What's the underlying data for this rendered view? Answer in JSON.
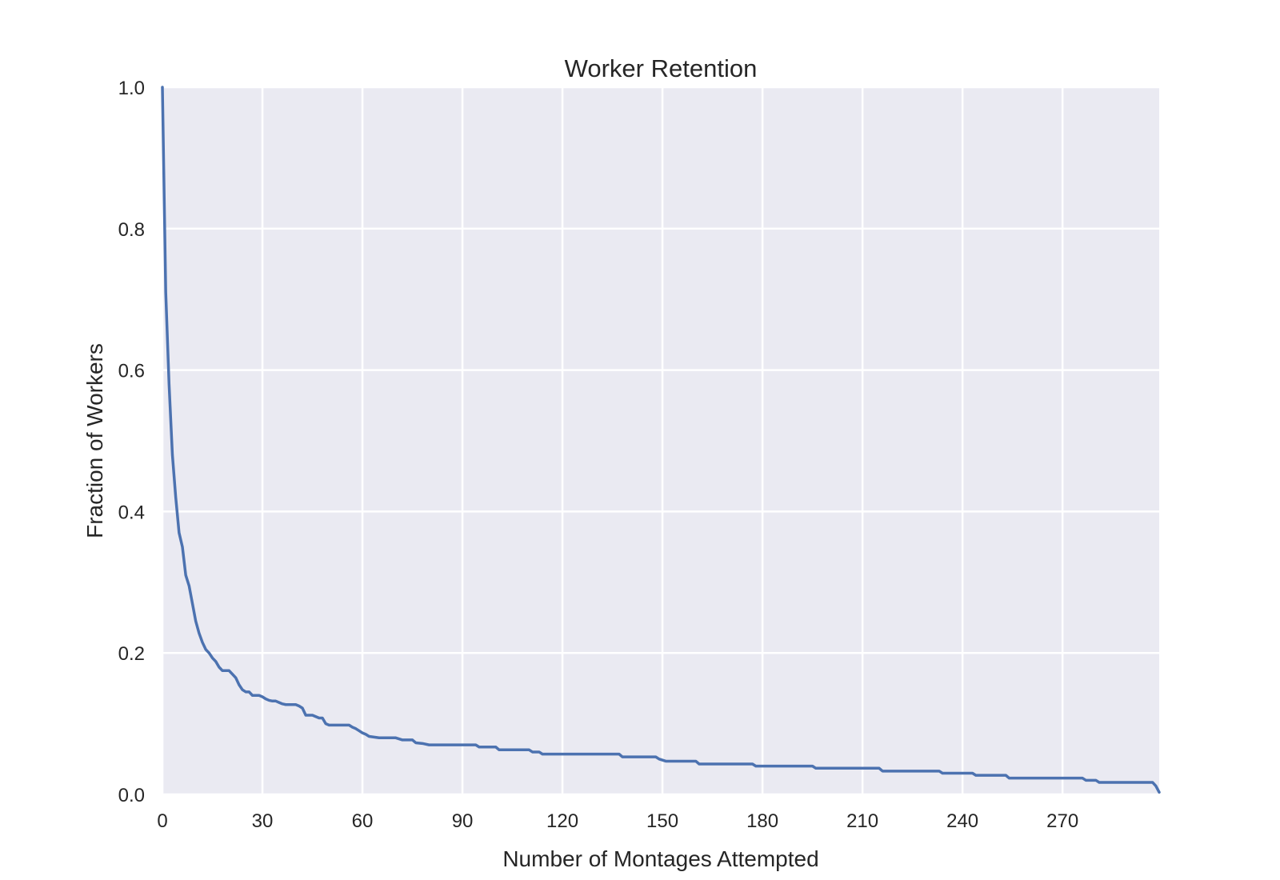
{
  "chart_data": {
    "type": "line",
    "title": "Worker Retention",
    "xlabel": "Number of Montages Attempted",
    "ylabel": "Fraction of Workers",
    "xlim": [
      0,
      299
    ],
    "ylim": [
      0,
      1.0
    ],
    "xticks": [
      0,
      30,
      60,
      90,
      120,
      150,
      180,
      210,
      240,
      270
    ],
    "yticks": [
      0.0,
      0.2,
      0.4,
      0.6,
      0.8,
      1.0
    ],
    "xtick_labels": [
      "0",
      "30",
      "60",
      "90",
      "120",
      "150",
      "180",
      "210",
      "240",
      "270"
    ],
    "ytick_labels": [
      "0.0",
      "0.2",
      "0.4",
      "0.6",
      "0.8",
      "1.0"
    ],
    "grid": true,
    "colors": {
      "background": "#EAEAF2",
      "grid": "#FFFFFF",
      "line": "#4C72B0"
    },
    "series": [
      {
        "x": [
          0,
          1,
          2,
          3,
          4,
          5,
          6,
          7,
          8,
          9,
          10,
          11,
          12,
          13,
          14,
          15,
          16,
          17,
          18,
          19,
          20,
          21,
          22,
          23,
          24,
          25,
          26,
          27,
          28,
          29,
          30,
          31,
          32,
          33,
          34,
          35,
          36,
          37,
          38,
          39,
          40,
          41,
          42,
          43,
          44,
          45,
          46,
          47,
          48,
          49,
          50,
          52,
          55,
          56,
          57,
          58,
          59,
          60,
          61,
          62,
          65,
          70,
          72,
          75,
          76,
          78,
          80,
          85,
          90,
          94,
          95,
          100,
          101,
          105,
          110,
          111,
          113,
          114,
          120,
          130,
          137,
          138,
          145,
          148,
          149,
          151,
          152,
          160,
          161,
          170,
          177,
          178,
          190,
          195,
          196,
          210,
          215,
          216,
          230,
          233,
          234,
          240,
          243,
          244,
          250,
          253,
          254,
          270,
          276,
          277,
          280,
          281,
          290,
          297,
          298,
          299
        ],
        "y": [
          1.0,
          0.71,
          0.58,
          0.48,
          0.42,
          0.37,
          0.35,
          0.31,
          0.295,
          0.27,
          0.245,
          0.228,
          0.215,
          0.205,
          0.2,
          0.193,
          0.188,
          0.18,
          0.175,
          0.175,
          0.175,
          0.17,
          0.165,
          0.155,
          0.148,
          0.145,
          0.145,
          0.14,
          0.14,
          0.14,
          0.138,
          0.135,
          0.133,
          0.132,
          0.132,
          0.13,
          0.128,
          0.127,
          0.127,
          0.127,
          0.127,
          0.125,
          0.122,
          0.112,
          0.112,
          0.112,
          0.11,
          0.108,
          0.108,
          0.1,
          0.098,
          0.098,
          0.098,
          0.098,
          0.095,
          0.093,
          0.09,
          0.087,
          0.085,
          0.082,
          0.08,
          0.08,
          0.077,
          0.077,
          0.073,
          0.072,
          0.07,
          0.07,
          0.07,
          0.07,
          0.067,
          0.067,
          0.063,
          0.063,
          0.063,
          0.06,
          0.06,
          0.057,
          0.057,
          0.057,
          0.057,
          0.053,
          0.053,
          0.053,
          0.05,
          0.047,
          0.047,
          0.047,
          0.043,
          0.043,
          0.043,
          0.04,
          0.04,
          0.04,
          0.037,
          0.037,
          0.037,
          0.033,
          0.033,
          0.033,
          0.03,
          0.03,
          0.03,
          0.027,
          0.027,
          0.027,
          0.023,
          0.023,
          0.023,
          0.02,
          0.02,
          0.017,
          0.017,
          0.017,
          0.012,
          0.003
        ]
      }
    ]
  }
}
